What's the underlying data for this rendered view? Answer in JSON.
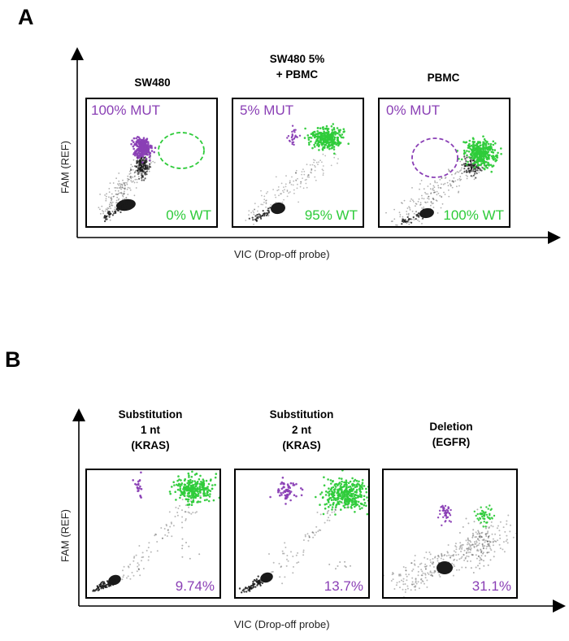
{
  "colors": {
    "mutant": "#8a3fb5",
    "wildtype": "#2ecb3a",
    "droplet": "#1a1a1a"
  },
  "panels": [
    {
      "letter": "A",
      "y_axis_label": "FAM (REF)",
      "x_axis_label": "VIC (Drop-off probe)",
      "plots": [
        {
          "title": [
            "SW480"
          ],
          "mut_label": "100% MUT",
          "wt_label": "0% WT",
          "mut_fraction": 1.0
        },
        {
          "title": [
            "SW480 5%",
            "+ PBMC"
          ],
          "mut_label": "5% MUT",
          "wt_label": "95% WT",
          "mut_fraction": 0.05
        },
        {
          "title": [
            "PBMC"
          ],
          "mut_label": "0% MUT",
          "wt_label": "100% WT",
          "mut_fraction": 0.0
        }
      ]
    },
    {
      "letter": "B",
      "y_axis_label": "FAM (REF)",
      "x_axis_label": "VIC (Drop-off probe)",
      "plots": [
        {
          "title": [
            "Substitution",
            "1 nt",
            "(KRAS)"
          ],
          "value_label": "9.74%",
          "mut_fraction": 0.0974
        },
        {
          "title": [
            "Substitution",
            "2 nt",
            "(KRAS)"
          ],
          "value_label": "13.7%",
          "mut_fraction": 0.137
        },
        {
          "title": [
            "Deletion",
            "(EGFR)"
          ],
          "value_label": "31.1%",
          "mut_fraction": 0.311
        }
      ]
    }
  ]
}
